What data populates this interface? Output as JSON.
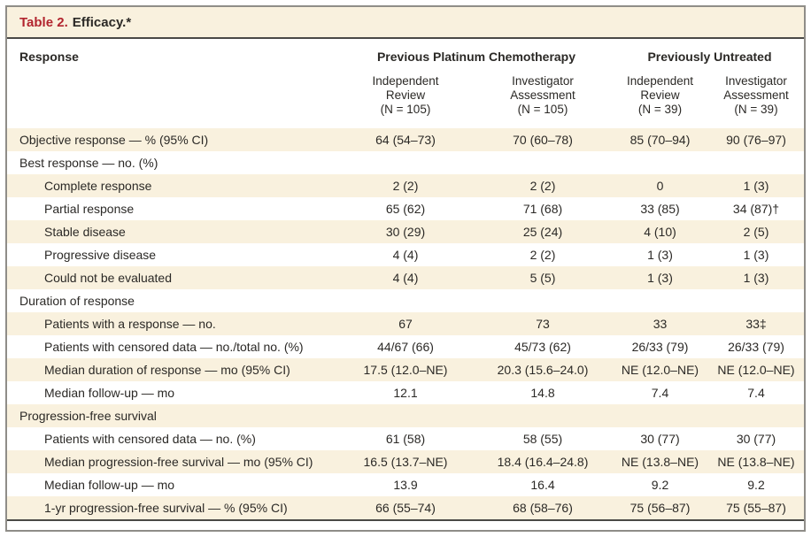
{
  "table": {
    "title_label": "Table 2.",
    "title_text": "Efficacy.*",
    "response_header": "Response",
    "groups": [
      {
        "label": "Previous Platinum Chemotherapy"
      },
      {
        "label": "Previously Untreated"
      }
    ],
    "columns": [
      {
        "lines": [
          "Independent",
          "Review",
          "(N = 105)"
        ]
      },
      {
        "lines": [
          "Investigator",
          "Assessment",
          "(N = 105)"
        ]
      },
      {
        "lines": [
          "Independent",
          "Review",
          "(N = 39)"
        ]
      },
      {
        "lines": [
          "Investigator",
          "Assessment",
          "(N = 39)"
        ]
      }
    ],
    "rows": [
      {
        "label": "Objective response — % (95% CI)",
        "indent": 0,
        "values": [
          "64 (54–73)",
          "70 (60–78)",
          "85 (70–94)",
          "90 (76–97)"
        ]
      },
      {
        "label": "Best response — no. (%)",
        "indent": 0,
        "values": [
          "",
          "",
          "",
          ""
        ]
      },
      {
        "label": "Complete response",
        "indent": 1,
        "values": [
          "2 (2)",
          "2 (2)",
          "0",
          "1 (3)"
        ]
      },
      {
        "label": "Partial response",
        "indent": 1,
        "values": [
          "65 (62)",
          "71 (68)",
          "33 (85)",
          "34 (87)†"
        ]
      },
      {
        "label": "Stable disease",
        "indent": 1,
        "values": [
          "30 (29)",
          "25 (24)",
          "4 (10)",
          "2 (5)"
        ]
      },
      {
        "label": "Progressive disease",
        "indent": 1,
        "values": [
          "4 (4)",
          "2 (2)",
          "1 (3)",
          "1 (3)"
        ]
      },
      {
        "label": "Could not be evaluated",
        "indent": 1,
        "values": [
          "4 (4)",
          "5 (5)",
          "1 (3)",
          "1 (3)"
        ]
      },
      {
        "label": "Duration of response",
        "indent": 0,
        "values": [
          "",
          "",
          "",
          ""
        ]
      },
      {
        "label": "Patients with a response — no.",
        "indent": 1,
        "values": [
          "67",
          "73",
          "33",
          "33‡"
        ]
      },
      {
        "label": "Patients with censored data — no./total no. (%)",
        "indent": 1,
        "values": [
          "44/67 (66)",
          "45/73 (62)",
          "26/33 (79)",
          "26/33 (79)"
        ]
      },
      {
        "label": "Median duration of response — mo (95% CI)",
        "indent": 1,
        "values": [
          "17.5 (12.0–NE)",
          "20.3 (15.6–24.0)",
          "NE (12.0–NE)",
          "NE (12.0–NE)"
        ]
      },
      {
        "label": "Median follow-up — mo",
        "indent": 1,
        "values": [
          "12.1",
          "14.8",
          "7.4",
          "7.4"
        ]
      },
      {
        "label": "Progression-free survival",
        "indent": 0,
        "values": [
          "",
          "",
          "",
          ""
        ]
      },
      {
        "label": "Patients with censored data — no. (%)",
        "indent": 1,
        "values": [
          "61 (58)",
          "58 (55)",
          "30 (77)",
          "30 (77)"
        ]
      },
      {
        "label": "Median progression-free survival — mo (95% CI)",
        "indent": 1,
        "values": [
          "16.5 (13.7–NE)",
          "18.4 (16.4–24.8)",
          "NE (13.8–NE)",
          "NE (13.8–NE)"
        ]
      },
      {
        "label": "Median follow-up — mo",
        "indent": 1,
        "values": [
          "13.9",
          "16.4",
          "9.2",
          "9.2"
        ]
      },
      {
        "label": "1-yr progression-free survival — % (95% CI)",
        "indent": 1,
        "values": [
          "66 (55–74)",
          "68 (58–76)",
          "75 (56–87)",
          "75 (55–87)"
        ]
      }
    ],
    "colors": {
      "accent_red": "#b2252f",
      "stripe_beige": "#f9f1de",
      "rule_dark": "#4a4946",
      "border_gray": "#8f8d88",
      "text": "#2b2926"
    }
  }
}
